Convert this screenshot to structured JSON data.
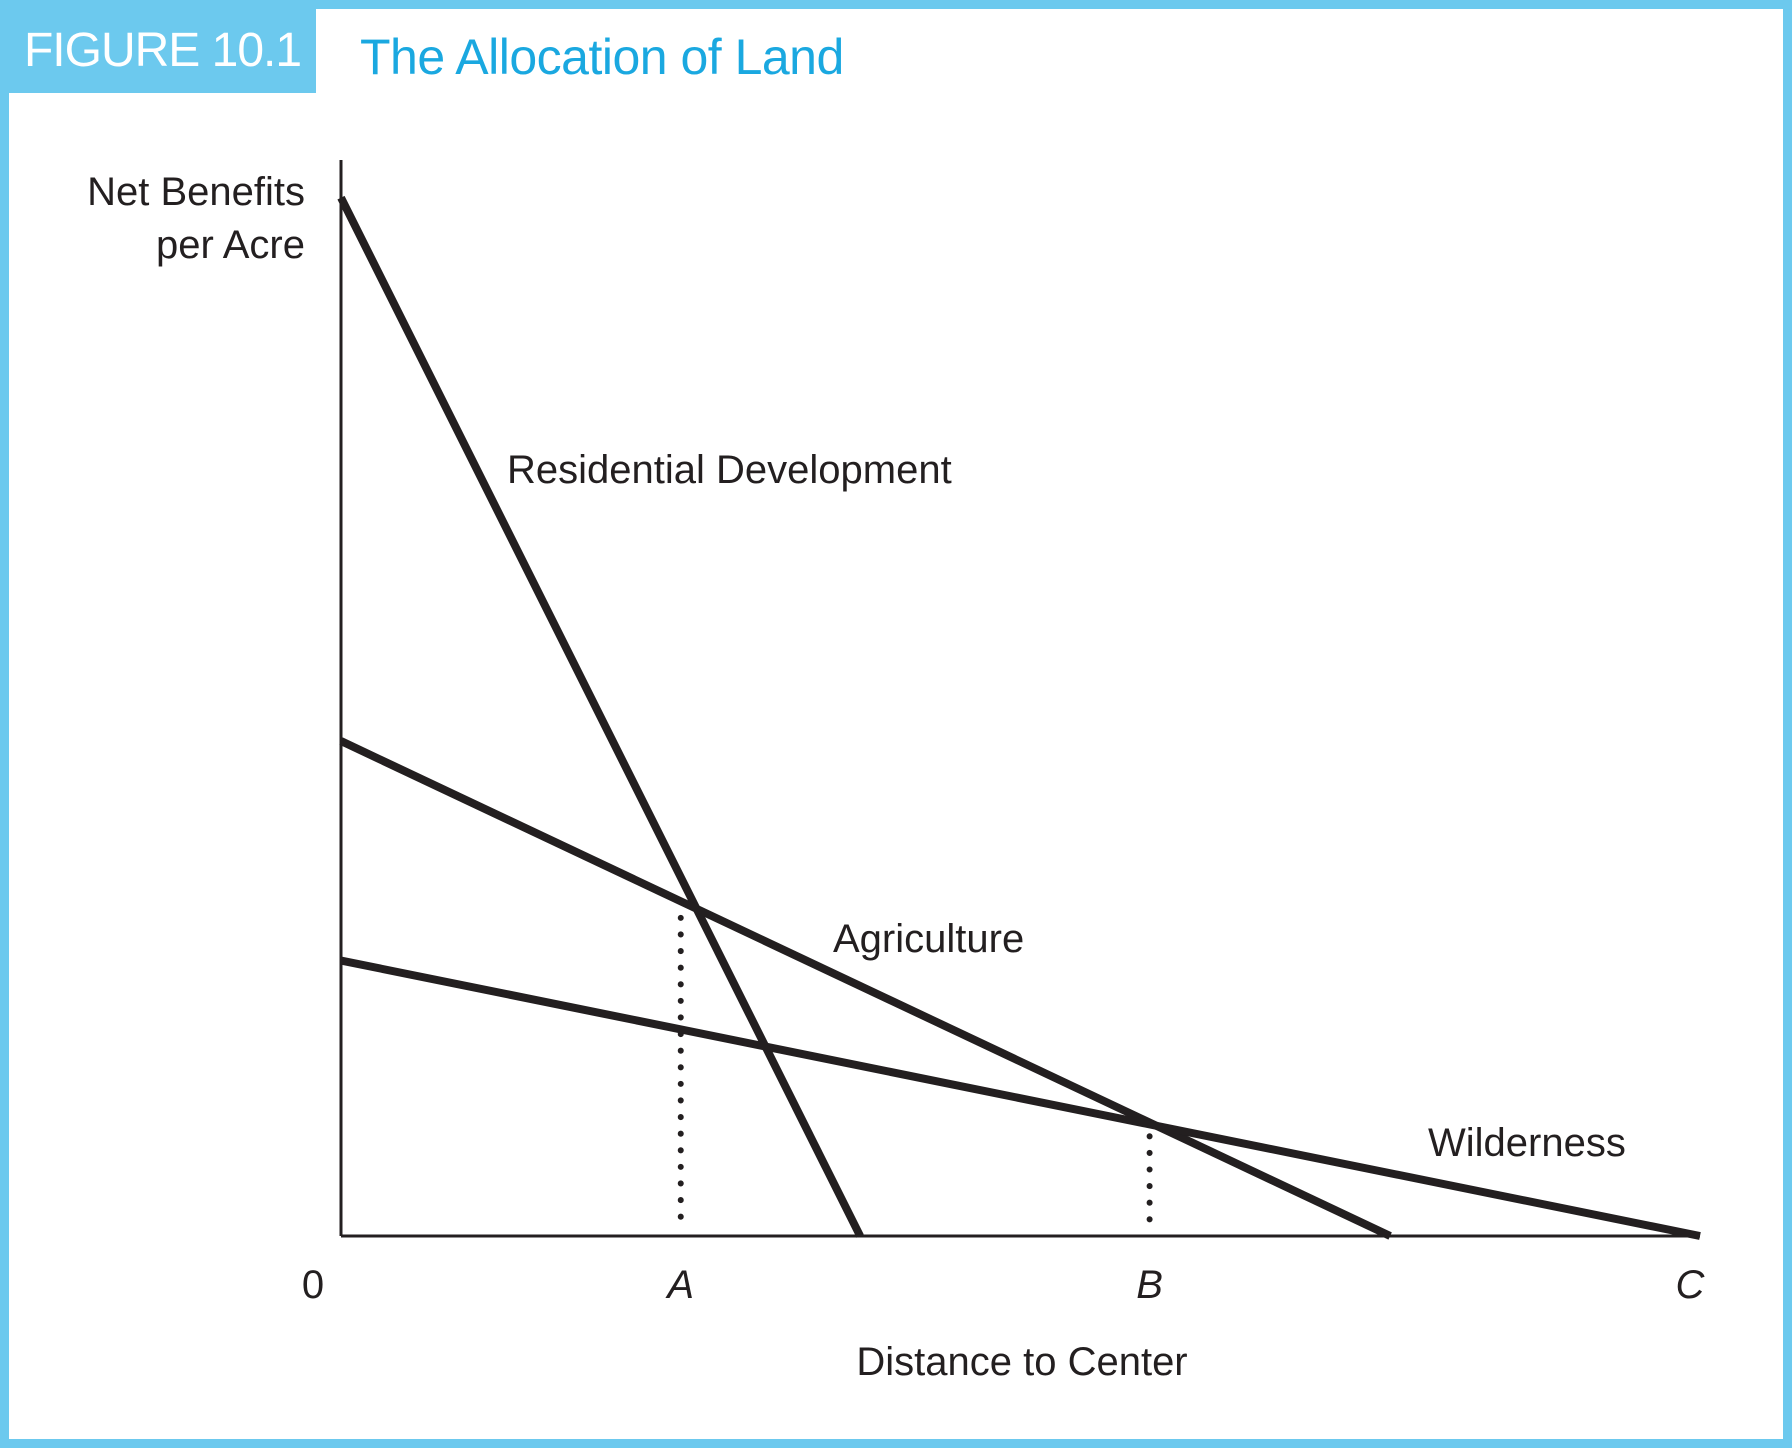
{
  "figure": {
    "tab_label": "FIGURE 10.1",
    "title": "The Allocation of Land"
  },
  "colors": {
    "accent_tab": "#6cc9ee",
    "title_text": "#1aa8e0",
    "line": "#231f20"
  },
  "chart_data": {
    "type": "line",
    "title": "The Allocation of Land",
    "xlabel": "Distance to Center",
    "ylabel": [
      "Net Benefits",
      "per Acre"
    ],
    "xlim": [
      0,
      1
    ],
    "ylim": [
      0,
      1
    ],
    "grid": false,
    "x_ticks": [
      {
        "label": "0",
        "x": 0,
        "italic": false
      },
      {
        "label": "A",
        "x": 0.25,
        "italic": true
      },
      {
        "label": "B",
        "x": 0.595,
        "italic": true
      },
      {
        "label": "C",
        "x": 1.0,
        "italic": true
      }
    ],
    "series": [
      {
        "name": "Residential Development",
        "x": [
          0,
          0.382
        ],
        "y": [
          0.965,
          0
        ]
      },
      {
        "name": "Agriculture",
        "x": [
          0,
          0.772
        ],
        "y": [
          0.46,
          0
        ]
      },
      {
        "name": "Wilderness",
        "x": [
          0,
          1.0
        ],
        "y": [
          0.256,
          0
        ]
      }
    ],
    "reference_lines": [
      {
        "x": 0.25,
        "y_top": 0.305,
        "style": "dotted"
      },
      {
        "x": 0.595,
        "y_top": 0.102,
        "style": "dotted"
      }
    ]
  }
}
